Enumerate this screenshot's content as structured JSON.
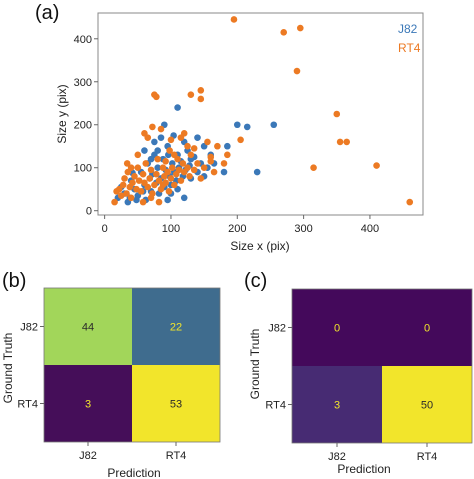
{
  "chart_data": [
    {
      "panel": "(a)",
      "type": "scatter",
      "xlabel": "Size x (pix)",
      "ylabel": "Size y (pix)",
      "xlim": [
        -10,
        480
      ],
      "ylim": [
        -10,
        460
      ],
      "xticks": [
        0,
        100,
        200,
        300,
        400
      ],
      "yticks": [
        0,
        100,
        200,
        300,
        400
      ],
      "grid": false,
      "legend_position": "top-right",
      "series": [
        {
          "name": "J82",
          "color": "#3b78b8",
          "points": [
            [
              20,
              30
            ],
            [
              25,
              55
            ],
            [
              30,
              40
            ],
            [
              35,
              20
            ],
            [
              40,
              70
            ],
            [
              45,
              50
            ],
            [
              50,
              35
            ],
            [
              55,
              90
            ],
            [
              60,
              60
            ],
            [
              62,
              25
            ],
            [
              65,
              110
            ],
            [
              70,
              45
            ],
            [
              72,
              85
            ],
            [
              75,
              130
            ],
            [
              78,
              65
            ],
            [
              80,
              100
            ],
            [
              82,
              40
            ],
            [
              85,
              75
            ],
            [
              88,
              120
            ],
            [
              90,
              55
            ],
            [
              92,
              95
            ],
            [
              95,
              150
            ],
            [
              98,
              80
            ],
            [
              100,
              60
            ],
            [
              102,
              110
            ],
            [
              105,
              90
            ],
            [
              108,
              70
            ],
            [
              110,
              130
            ],
            [
              112,
              100
            ],
            [
              115,
              115
            ],
            [
              118,
              80
            ],
            [
              120,
              160
            ],
            [
              122,
              95
            ],
            [
              125,
              140
            ],
            [
              128,
              105
            ],
            [
              130,
              75
            ],
            [
              135,
              125
            ],
            [
              140,
              90
            ],
            [
              145,
              110
            ],
            [
              150,
              150
            ],
            [
              155,
              100
            ],
            [
              160,
              130
            ],
            [
              165,
              110
            ],
            [
              180,
              90
            ],
            [
              185,
              150
            ],
            [
              200,
              200
            ],
            [
              215,
              195
            ],
            [
              230,
              90
            ],
            [
              255,
              200
            ],
            [
              100,
              40
            ],
            [
              95,
              25
            ],
            [
              85,
              170
            ],
            [
              75,
              160
            ],
            [
              60,
              140
            ],
            [
              110,
              50
            ],
            [
              68,
              75
            ],
            [
              58,
              45
            ],
            [
              48,
              25
            ],
            [
              42,
              88
            ],
            [
              38,
              30
            ],
            [
              130,
              120
            ],
            [
              140,
              170
            ],
            [
              104,
              175
            ],
            [
              96,
              130
            ],
            [
              90,
              200
            ],
            [
              110,
              240
            ],
            [
              70,
              120
            ],
            [
              150,
              80
            ],
            [
              120,
              30
            ],
            [
              80,
              140
            ]
          ]
        },
        {
          "name": "RT4",
          "color": "#ec7a23",
          "points": [
            [
              15,
              20
            ],
            [
              18,
              45
            ],
            [
              22,
              50
            ],
            [
              25,
              35
            ],
            [
              28,
              60
            ],
            [
              30,
              75
            ],
            [
              33,
              40
            ],
            [
              35,
              90
            ],
            [
              38,
              55
            ],
            [
              40,
              30
            ],
            [
              42,
              65
            ],
            [
              45,
              80
            ],
            [
              48,
              50
            ],
            [
              50,
              100
            ],
            [
              52,
              70
            ],
            [
              55,
              45
            ],
            [
              58,
              85
            ],
            [
              60,
              65
            ],
            [
              62,
              110
            ],
            [
              65,
              55
            ],
            [
              68,
              75
            ],
            [
              70,
              95
            ],
            [
              72,
              40
            ],
            [
              75,
              60
            ],
            [
              78,
              85
            ],
            [
              80,
              120
            ],
            [
              82,
              70
            ],
            [
              85,
              50
            ],
            [
              88,
              100
            ],
            [
              90,
              80
            ],
            [
              92,
              65
            ],
            [
              95,
              90
            ],
            [
              98,
              140
            ],
            [
              100,
              75
            ],
            [
              102,
              100
            ],
            [
              105,
              60
            ],
            [
              108,
              85
            ],
            [
              110,
              120
            ],
            [
              112,
              95
            ],
            [
              115,
              70
            ],
            [
              118,
              110
            ],
            [
              120,
              90
            ],
            [
              125,
              100
            ],
            [
              128,
              80
            ],
            [
              130,
              130
            ],
            [
              135,
              95
            ],
            [
              140,
              110
            ],
            [
              145,
              75
            ],
            [
              150,
              100
            ],
            [
              155,
              160
            ],
            [
              160,
              125
            ],
            [
              165,
              90
            ],
            [
              70,
              30
            ],
            [
              82,
              20
            ],
            [
              65,
              170
            ],
            [
              60,
              180
            ],
            [
              75,
              270
            ],
            [
              78,
              265
            ],
            [
              135,
              145
            ],
            [
              145,
              260
            ],
            [
              160,
              115
            ],
            [
              170,
              150
            ],
            [
              180,
              110
            ],
            [
              185,
              130
            ],
            [
              205,
              165
            ],
            [
              195,
              445
            ],
            [
              270,
              415
            ],
            [
              295,
              425
            ],
            [
              290,
              325
            ],
            [
              350,
              225
            ],
            [
              355,
              160
            ],
            [
              365,
              160
            ],
            [
              410,
              105
            ],
            [
              315,
              100
            ],
            [
              460,
              20
            ],
            [
              72,
              195
            ],
            [
              85,
              190
            ],
            [
              120,
              180
            ],
            [
              130,
              270
            ],
            [
              145,
              280
            ],
            [
              100,
              165
            ],
            [
              115,
              170
            ],
            [
              125,
              150
            ],
            [
              92,
              115
            ],
            [
              105,
              130
            ],
            [
              88,
              60
            ],
            [
              97,
              45
            ],
            [
              58,
              20
            ],
            [
              50,
              130
            ],
            [
              40,
              100
            ],
            [
              34,
              110
            ]
          ]
        }
      ]
    },
    {
      "panel": "(b)",
      "type": "heatmap",
      "xlabel": "Prediction",
      "ylabel": "Ground Truth",
      "x_categories": [
        "J82",
        "RT4"
      ],
      "y_categories": [
        "J82",
        "RT4"
      ],
      "values": [
        [
          44,
          22
        ],
        [
          3,
          53
        ]
      ],
      "cell_colors": [
        [
          "#a2d65a",
          "#3f6c8e"
        ],
        [
          "#450e59",
          "#f2e52b"
        ]
      ],
      "text_colors": [
        [
          "#2a2a2a",
          "#f2e52b"
        ],
        [
          "#f2e52b",
          "#2a2a2a"
        ]
      ]
    },
    {
      "panel": "(c)",
      "type": "heatmap",
      "xlabel": "Prediction",
      "ylabel": "Ground Truth",
      "x_categories": [
        "J82",
        "RT4"
      ],
      "y_categories": [
        "J82",
        "RT4"
      ],
      "values": [
        [
          0,
          0
        ],
        [
          3,
          50
        ]
      ],
      "cell_colors": [
        [
          "#44095b",
          "#44095b"
        ],
        [
          "#472b73",
          "#f2e52b"
        ]
      ],
      "text_colors": [
        [
          "#f2e52b",
          "#f2e52b"
        ],
        [
          "#f2e52b",
          "#2a2a2a"
        ]
      ]
    }
  ]
}
